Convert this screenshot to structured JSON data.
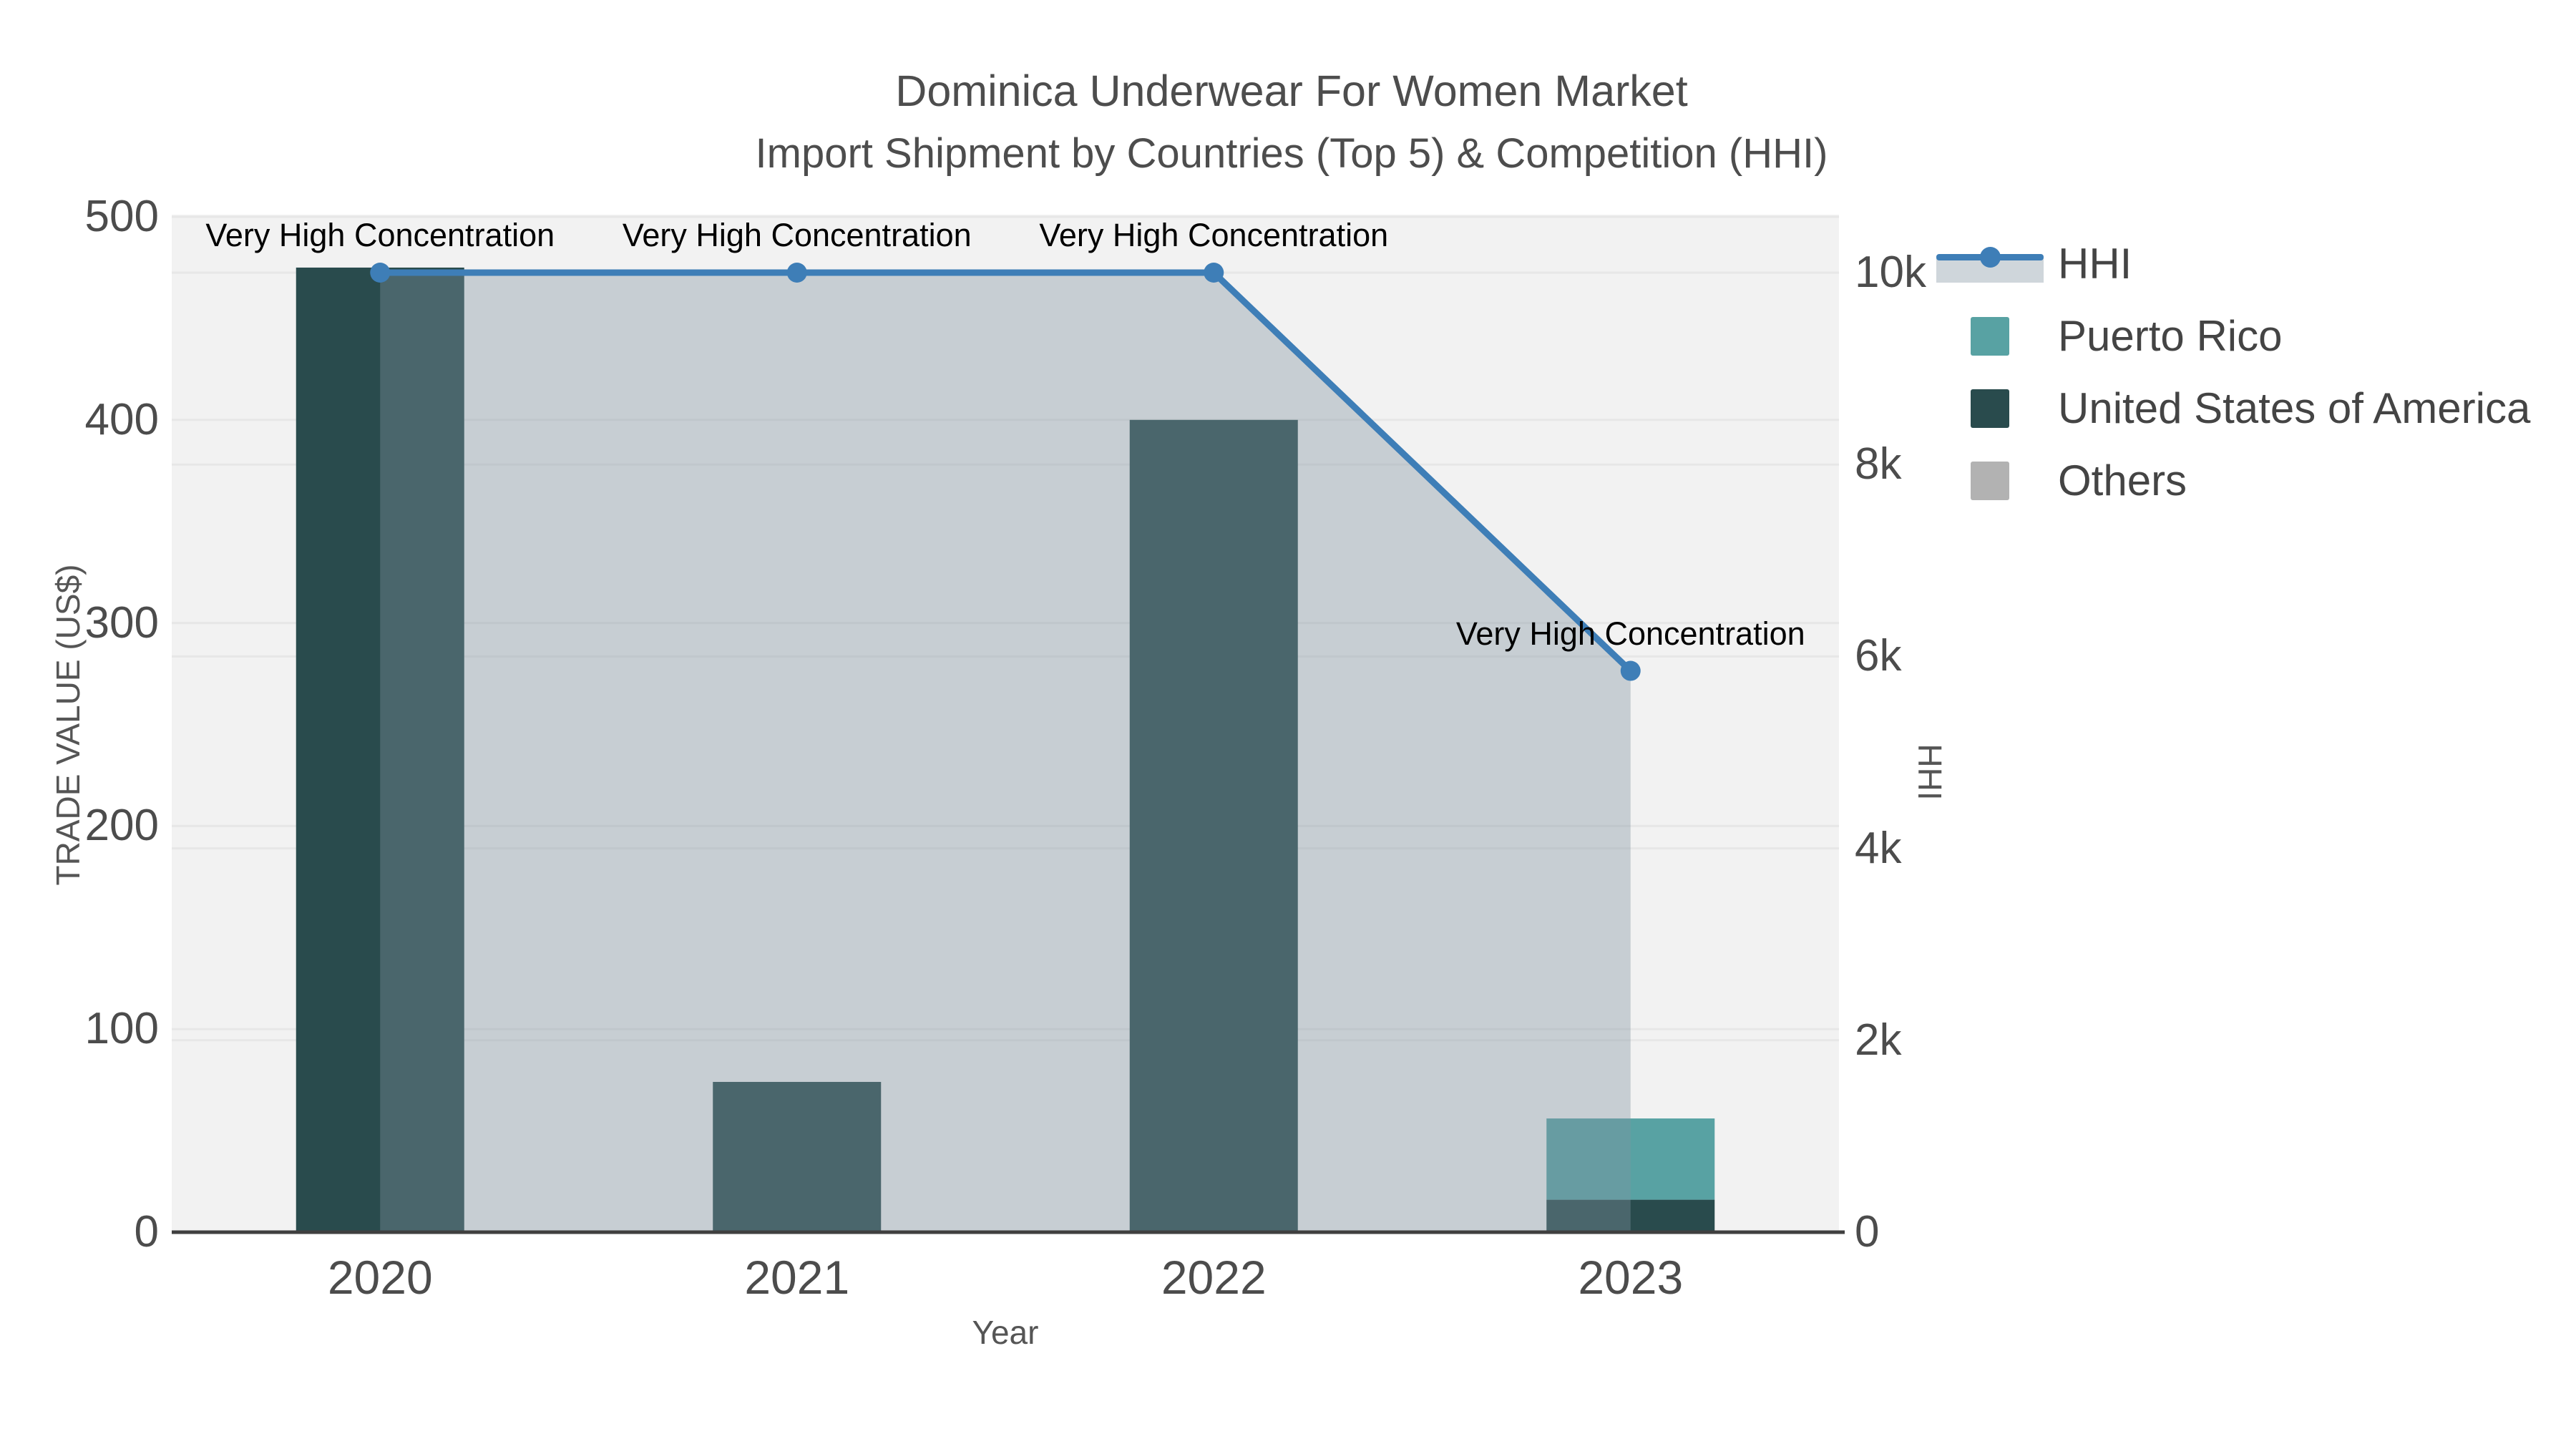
{
  "figure": {
    "title_line1": "Dominica Underwear For Women Market",
    "title_line2": "Import Shipment by Countries (Top 5) & Competition (HHI)"
  },
  "axes": {
    "x": {
      "title": "Year",
      "tick_labels": [
        "2020",
        "2021",
        "2022",
        "2023"
      ]
    },
    "y_left": {
      "title": "TRADE VALUE (US$)",
      "ticks": [
        0,
        100,
        200,
        300,
        400,
        500
      ],
      "tick_labels": [
        "0",
        "100",
        "200",
        "300",
        "400",
        "500"
      ]
    },
    "y_right": {
      "title": "HHI",
      "ticks": [
        0,
        2000,
        4000,
        6000,
        8000,
        10000
      ],
      "tick_labels": [
        "0",
        "2k",
        "4k",
        "6k",
        "8k",
        "10k"
      ]
    }
  },
  "legend": {
    "items": [
      {
        "label": "HHI",
        "type": "line",
        "color": "#3e7eb7"
      },
      {
        "label": "Puerto Rico",
        "type": "swatch",
        "color": "#58a2a3"
      },
      {
        "label": "United States of America",
        "type": "swatch",
        "color": "#294b4d"
      },
      {
        "label": "Others",
        "type": "swatch",
        "color": "#b2b2b2"
      }
    ]
  },
  "chart_data": {
    "type": "bar+line",
    "categories": [
      "2020",
      "2021",
      "2022",
      "2023"
    ],
    "bar_mode": "stack",
    "stack_order_bottom_to_top": [
      "United States of America",
      "Puerto Rico",
      "Others"
    ],
    "series": [
      {
        "name": "United States of America",
        "type": "bar",
        "yaxis": "left",
        "color": "#294b4d",
        "values": [
          475,
          74,
          400,
          16
        ]
      },
      {
        "name": "Puerto Rico",
        "type": "bar",
        "yaxis": "left",
        "color": "#58a2a3",
        "values": [
          0,
          0,
          0,
          40
        ]
      },
      {
        "name": "Others",
        "type": "bar",
        "yaxis": "left",
        "color": "#b2b2b2",
        "values": [
          0,
          0,
          0,
          0
        ]
      },
      {
        "name": "HHI",
        "type": "line+area",
        "yaxis": "right",
        "color": "#3e7eb7",
        "area_color": "rgba(128,146,160,0.38)",
        "values": [
          10000,
          10000,
          10000,
          5850
        ]
      }
    ],
    "annotations": [
      {
        "text": "Very High Concentration",
        "x": "2020",
        "series": "HHI",
        "value": 10000
      },
      {
        "text": "Very High Concentration",
        "x": "2021",
        "series": "HHI",
        "value": 10000
      },
      {
        "text": "Very High Concentration",
        "x": "2022",
        "series": "HHI",
        "value": 10000
      },
      {
        "text": "Very High Concentration",
        "x": "2023",
        "series": "HHI",
        "value": 5850
      }
    ],
    "xlabel": "Year",
    "ylabel_left": "TRADE VALUE (US$)",
    "ylabel_right": "HHI",
    "ylim_left": [
      0,
      500
    ],
    "ylim_right": [
      0,
      10000
    ],
    "legend_position": "right-top",
    "grid": true,
    "plot_bg": "#f2f2f2",
    "grid_color": "#e7e7e7",
    "axis_line_color": "#3f3f3f"
  }
}
